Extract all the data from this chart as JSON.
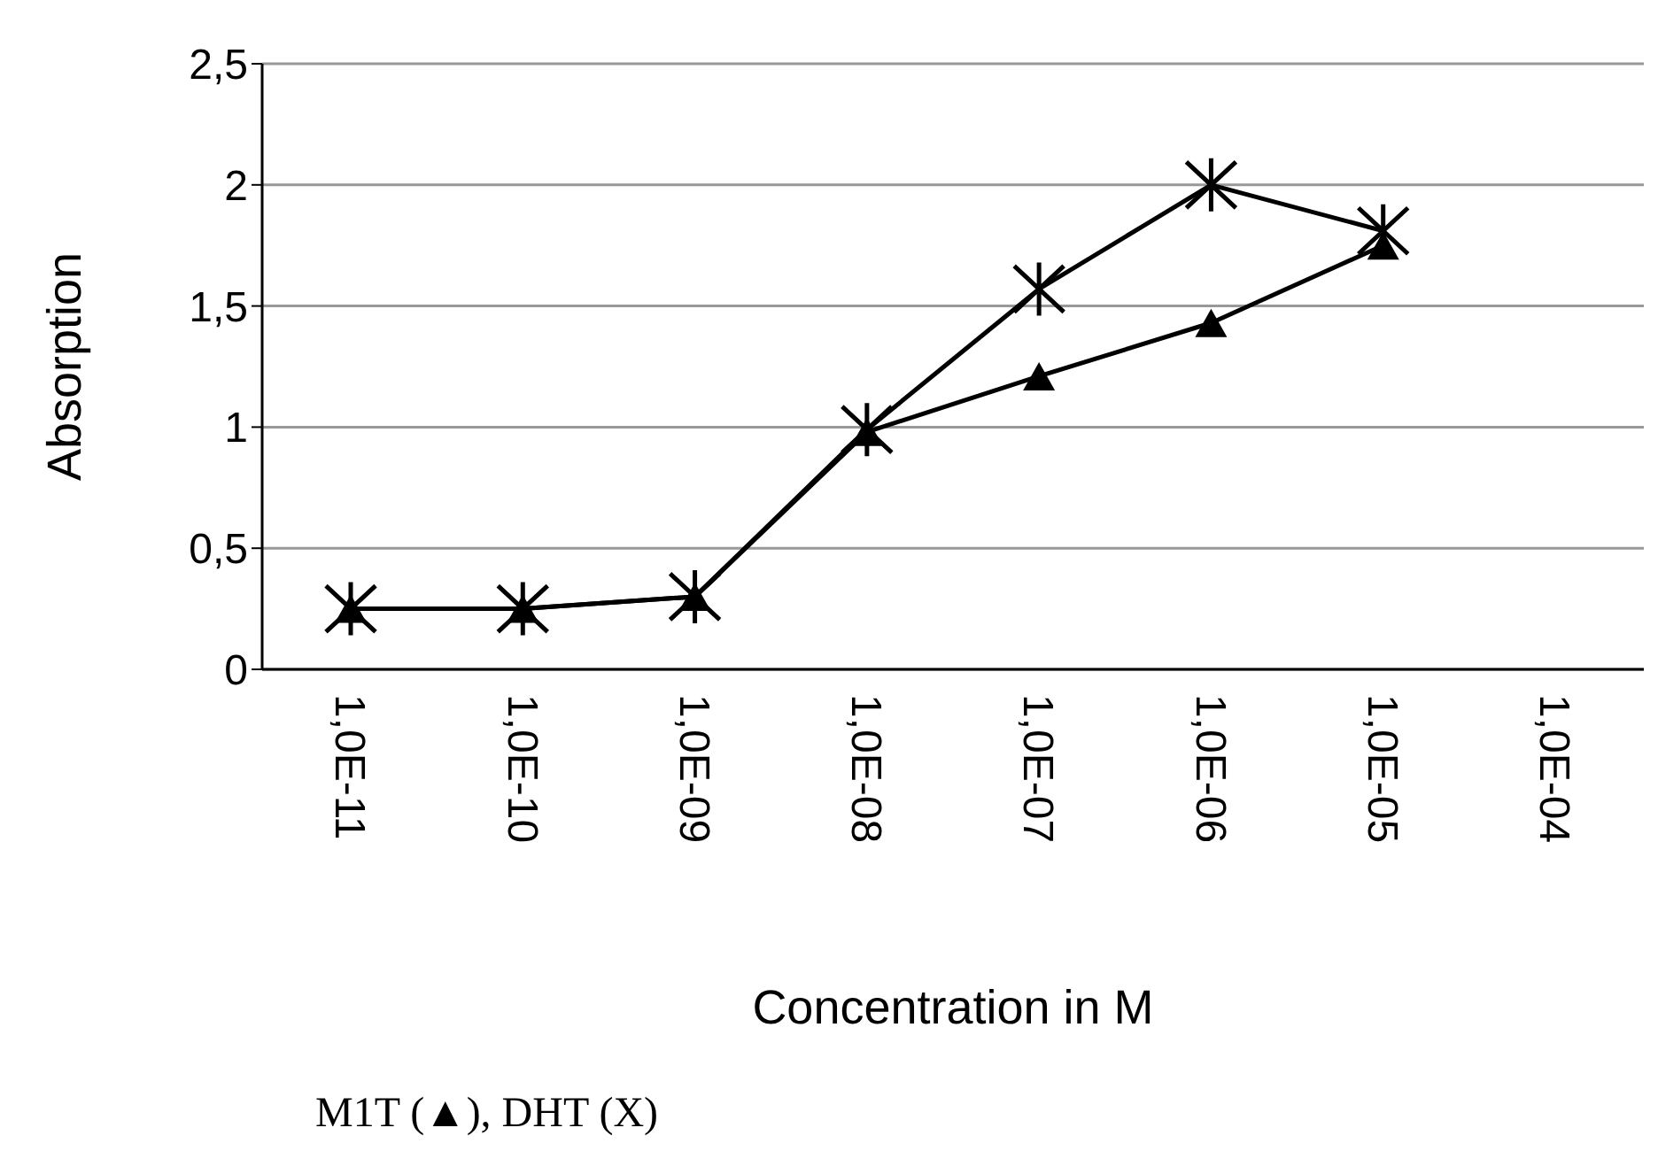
{
  "chart_data": {
    "type": "line",
    "xlabel": "Concentration in M",
    "ylabel": "Absorption",
    "categories": [
      "1,0E-11",
      "1,0E-10",
      "1,0E-09",
      "1,0E-08",
      "1,0E-07",
      "1,0E-06",
      "1,0E-05",
      "1,0E-04"
    ],
    "series": [
      {
        "color": "#000000",
        "marker": "cross",
        "values": [
          0.25,
          0.25,
          0.3,
          0.99,
          1.57,
          2.0,
          1.81,
          null
        ]
      },
      {
        "color": "#000000",
        "marker": "triangle",
        "values": [
          0.25,
          0.25,
          0.3,
          0.98,
          1.21,
          1.43,
          1.75,
          null
        ]
      }
    ],
    "ylim": [
      0,
      2.5
    ],
    "yticks": [
      0,
      {
        "value": 0.5,
        "label": "0,5"
      },
      1,
      {
        "value": 1.5,
        "label": "1,5"
      },
      2,
      {
        "value": 2.5,
        "label": "2,5"
      }
    ],
    "grid": "y",
    "line_style": "solid",
    "annotations": [
      "M1T (▲), DHT (X)"
    ]
  }
}
